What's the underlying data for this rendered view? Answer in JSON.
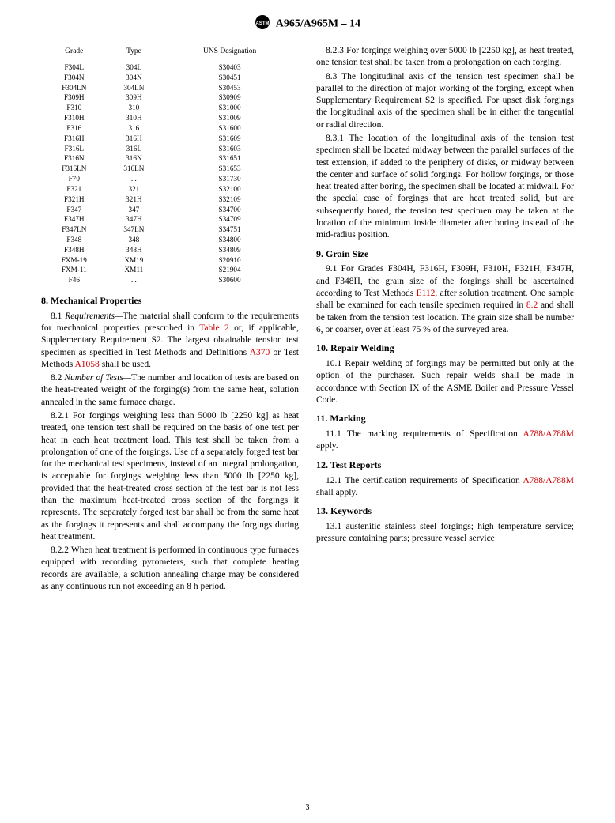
{
  "header": {
    "designation": "A965/A965M – 14"
  },
  "table": {
    "columns": [
      "Grade",
      "Type",
      "UNS Designation"
    ],
    "rows": [
      [
        "F304L",
        "304L",
        "S30403"
      ],
      [
        "F304N",
        "304N",
        "S30451"
      ],
      [
        "F304LN",
        "304LN",
        "S30453"
      ],
      [
        "F309H",
        "309H",
        "S30909"
      ],
      [
        "F310",
        "310",
        "S31000"
      ],
      [
        "F310H",
        "310H",
        "S31009"
      ],
      [
        "F316",
        "316",
        "S31600"
      ],
      [
        "F316H",
        "316H",
        "S31609"
      ],
      [
        "F316L",
        "316L",
        "S31603"
      ],
      [
        "F316N",
        "316N",
        "S31651"
      ],
      [
        "F316LN",
        "316LN",
        "S31653"
      ],
      [
        "F70",
        "...",
        "S31730"
      ],
      [
        "F321",
        "321",
        "S32100"
      ],
      [
        "F321H",
        "321H",
        "S32109"
      ],
      [
        "F347",
        "347",
        "S34700"
      ],
      [
        "F347H",
        "347H",
        "S34709"
      ],
      [
        "F347LN",
        "347LN",
        "S34751"
      ],
      [
        "F348",
        "348",
        "S34800"
      ],
      [
        "F348H",
        "348H",
        "S34809"
      ],
      [
        "FXM-19",
        "XM19",
        "S20910"
      ],
      [
        "FXM-11",
        "XM11",
        "S21904"
      ],
      [
        "F46",
        "...",
        "S30600"
      ]
    ]
  },
  "left_sections": {
    "s8": {
      "heading": "8.  Mechanical Properties",
      "p8_1_a": "8.1 ",
      "p8_1_label": "Requirements—",
      "p8_1_b": "The material shall conform to the requirements for mechanical properties prescribed in ",
      "p8_1_link1": "Table 2",
      "p8_1_c": " or, if applicable, Supplementary Requirement S2. The largest obtainable tension test specimen as specified in Test Methods and Definitions ",
      "p8_1_link2": "A370",
      "p8_1_d": " or Test Methods ",
      "p8_1_link3": "A1058",
      "p8_1_e": " shall be used.",
      "p8_2_a": "8.2 ",
      "p8_2_label": "Number of Tests—",
      "p8_2_b": "The number and location of tests are based on the heat-treated weight of the forging(s) from the same heat, solution annealed in the same furnace charge.",
      "p8_2_1": "8.2.1 For forgings weighing less than 5000 lb [2250 kg] as heat treated, one tension test shall be required on the basis of one test per heat in each heat treatment load. This test shall be taken from a prolongation of one of the forgings. Use of a separately forged test bar for the mechanical test specimens, instead of an integral prolongation, is acceptable for forgings weighing less than 5000 lb [2250 kg], provided that the heat-treated cross section of the test bar is not less than the maximum heat-treated cross section of the forgings it represents. The separately forged test bar shall be from the same heat as the forgings it represents and shall accompany the forgings during heat treatment.",
      "p8_2_2": "8.2.2 When heat treatment is performed in continuous type furnaces equipped with recording pyrometers, such that complete heating records are available, a solution annealing charge may be considered as any continuous run not exceeding an 8 h period."
    }
  },
  "right_sections": {
    "p8_2_3": "8.2.3 For forgings weighing over 5000 lb [2250 kg], as heat treated, one tension test shall be taken from a prolongation on each forging.",
    "p8_3": "8.3 The longitudinal axis of the tension test specimen shall be parallel to the direction of major working of the forging, except when Supplementary Requirement S2 is specified. For upset disk forgings the longitudinal axis of the specimen shall be in either the tangential or radial direction.",
    "p8_3_1": "8.3.1 The location of the longitudinal axis of the tension test specimen shall be located midway between the parallel surfaces of the test extension, if added to the periphery of disks, or midway between the center and surface of solid forgings. For hollow forgings, or those heat treated after boring, the specimen shall be located at midwall. For the special case of forgings that are heat treated solid, but are subsequently bored, the tension test specimen may be taken at the location of the minimum inside diameter after boring instead of the mid-radius position.",
    "s9_heading": "9.  Grain Size",
    "p9_1_a": "9.1 For Grades F304H, F316H, F309H, F310H, F321H, F347H, and F348H, the grain size of the forgings shall be ascertained according to Test Methods ",
    "p9_1_link1": "E112",
    "p9_1_b": ", after solution treatment. One sample shall be examined for each tensile specimen required in ",
    "p9_1_link2": "8.2",
    "p9_1_c": " and shall be taken from the tension test location. The grain size shall be number 6, or coarser, over at least 75 % of the surveyed area.",
    "s10_heading": "10.  Repair Welding",
    "p10_1": "10.1 Repair welding of forgings may be permitted but only at the option of the purchaser. Such repair welds shall be made in accordance with Section IX of the ASME Boiler and Pressure Vessel Code.",
    "s11_heading": "11.  Marking",
    "p11_1_a": "11.1 The marking requirements of Specification ",
    "p11_1_link": "A788/A788M",
    "p11_1_b": " apply.",
    "s12_heading": "12.  Test Reports",
    "p12_1_a": "12.1 The certification requirements of Specification ",
    "p12_1_link": "A788/A788M",
    "p12_1_b": " shall apply.",
    "s13_heading": "13.  Keywords",
    "p13_1": "13.1 austenitic stainless steel forgings; high temperature service; pressure containing parts; pressure vessel service"
  },
  "page_number": "3",
  "colors": {
    "link": "#cc0000",
    "text": "#000000",
    "background": "#ffffff"
  }
}
